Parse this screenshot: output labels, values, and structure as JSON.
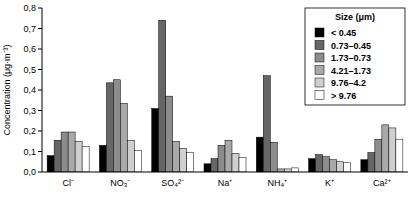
{
  "chart_data": {
    "type": "bar",
    "y_label": "Concentration (μg·m⁻³)",
    "legend_title": "Size (μm)",
    "legend": "upper right",
    "grid": false,
    "categories": [
      "Cl⁻",
      "NO₃⁻",
      "SO₄²⁻",
      "Na⁺",
      "NH₄⁺",
      "K⁺",
      "Ca²⁺"
    ],
    "ylim": [
      0,
      0.8
    ],
    "yticks": [
      {
        "value": 0,
        "label": "0,0"
      },
      {
        "value": 0.1,
        "label": "0,1"
      },
      {
        "value": 0.2,
        "label": "0,2"
      },
      {
        "value": 0.3,
        "label": "0,3"
      },
      {
        "value": 0.4,
        "label": "0,4"
      },
      {
        "value": 0.5,
        "label": "0,5"
      },
      {
        "value": 0.6,
        "label": "0,6"
      },
      {
        "value": 0.7,
        "label": "0,7"
      },
      {
        "value": 0.8,
        "label": "0,8"
      }
    ],
    "series": [
      {
        "name": "< 0.45",
        "color": "#000000",
        "values": [
          0.08,
          0.13,
          0.31,
          0.04,
          0.17,
          0.065,
          0.06
        ]
      },
      {
        "name": "0.73–0.45",
        "color": "#666666",
        "values": [
          0.155,
          0.435,
          0.74,
          0.065,
          0.47,
          0.085,
          0.095
        ]
      },
      {
        "name": "1.73–0.73",
        "color": "#8c8c8c",
        "values": [
          0.195,
          0.45,
          0.37,
          0.13,
          0.145,
          0.075,
          0.16
        ]
      },
      {
        "name": "4.21–1.73",
        "color": "#a9a9a9",
        "values": [
          0.195,
          0.335,
          0.15,
          0.155,
          0.015,
          0.06,
          0.23
        ]
      },
      {
        "name": "9.76–4.2",
        "color": "#cfcfcf",
        "values": [
          0.15,
          0.155,
          0.115,
          0.09,
          0.015,
          0.05,
          0.215
        ]
      },
      {
        "name": "> 9.76",
        "color": "#ffffff",
        "values": [
          0.125,
          0.105,
          0.095,
          0.07,
          0.02,
          0.045,
          0.16
        ]
      }
    ]
  }
}
